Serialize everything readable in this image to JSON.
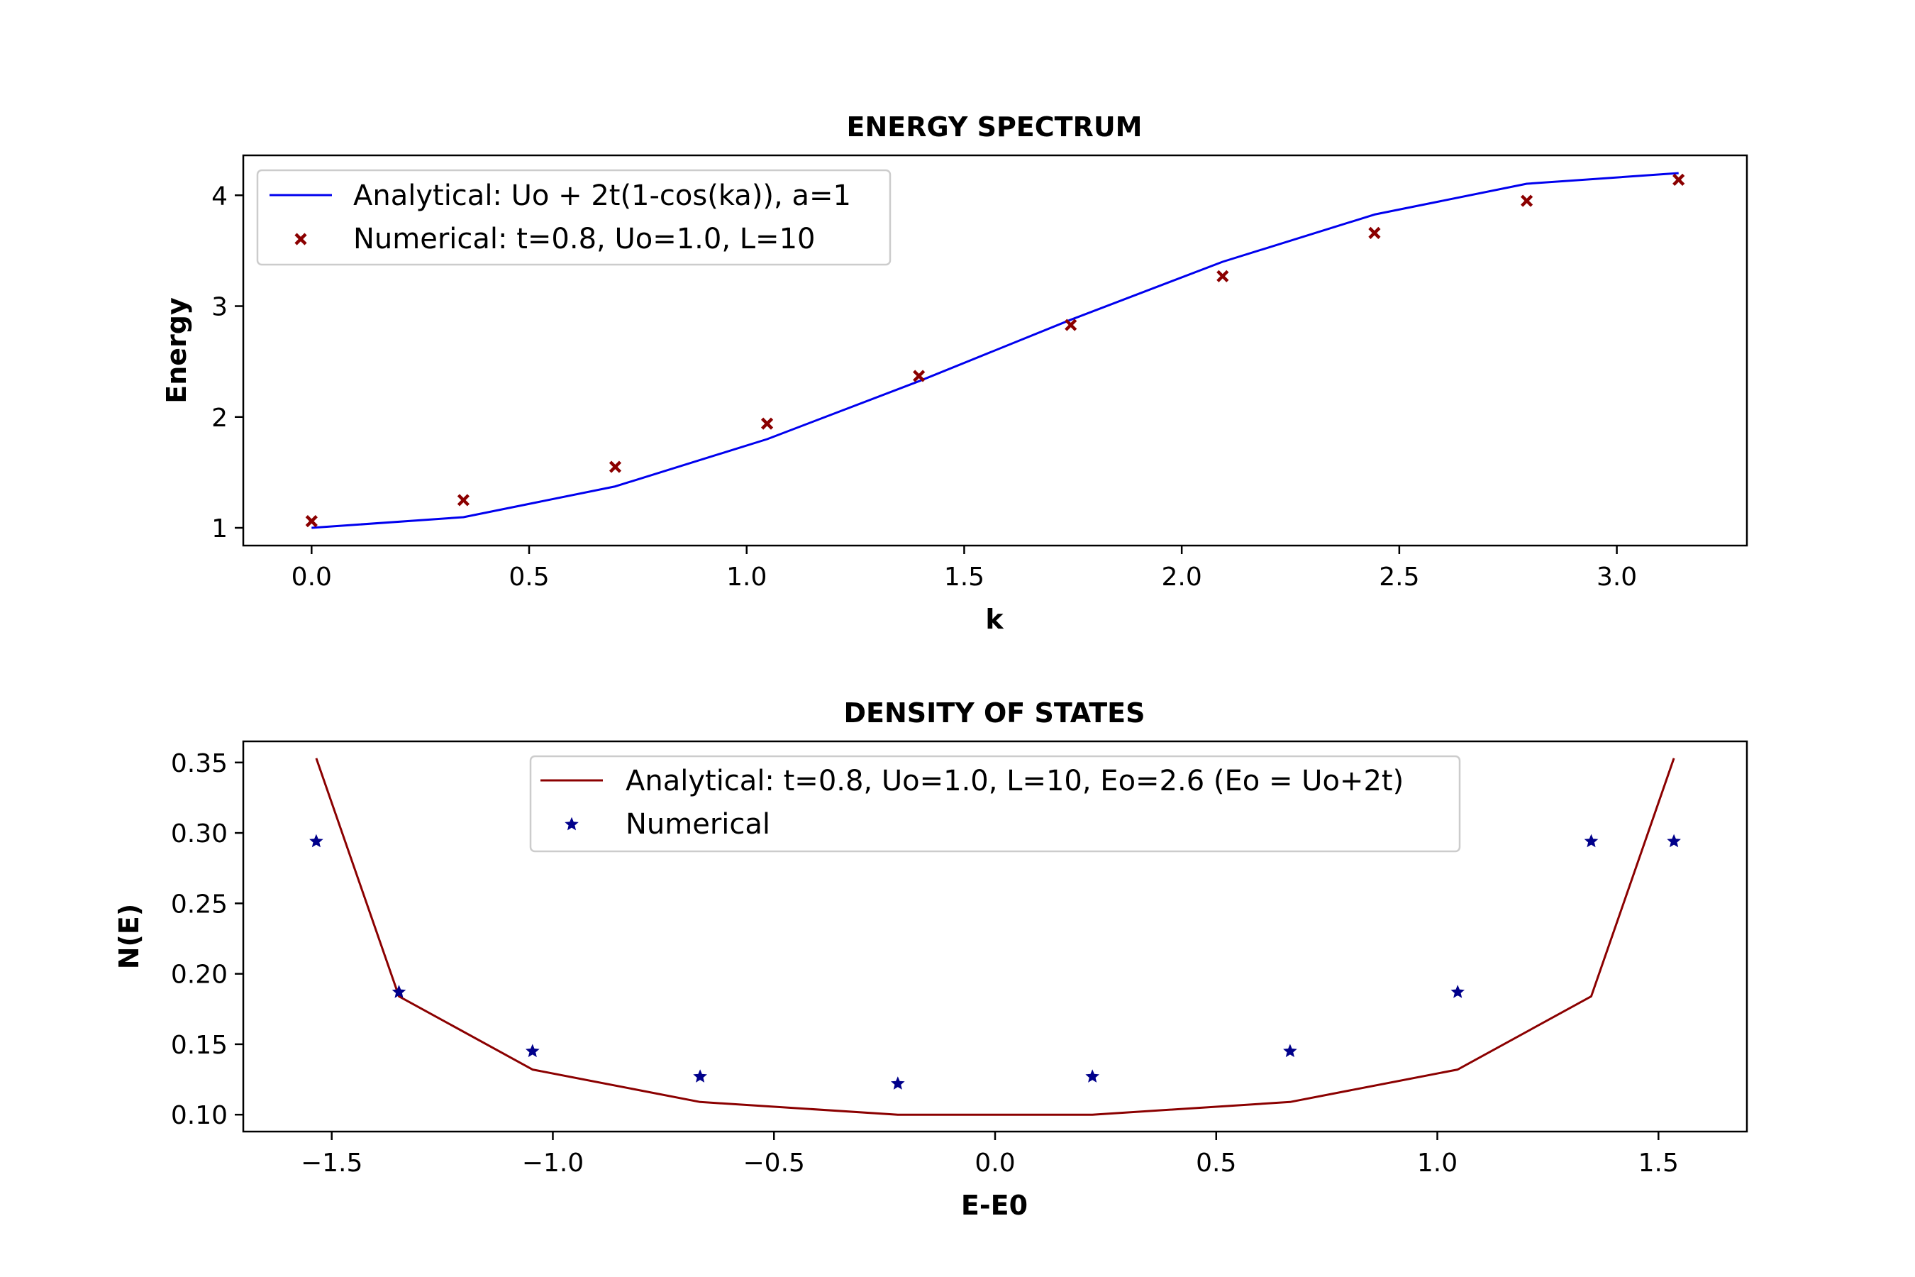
{
  "chart_data": [
    {
      "type": "line",
      "title": "ENERGY SPECTRUM",
      "xlabel": "k",
      "ylabel": "Energy",
      "xlim": [
        -0.157,
        3.299
      ],
      "ylim": [
        0.84,
        4.36
      ],
      "xticks": [
        "0.0",
        "0.5",
        "1.0",
        "1.5",
        "2.0",
        "2.5",
        "3.0"
      ],
      "yticks": [
        "1",
        "2",
        "3",
        "4"
      ],
      "legend_position": "upper-left",
      "colors": {
        "line": "#0000ee",
        "markers": "#8b0000"
      },
      "series": [
        {
          "name": "Analytical: Uo + 2t(1-cos(ka)), a=1",
          "kind": "line",
          "x": [
            0.0,
            0.349,
            0.698,
            1.047,
            1.396,
            1.745,
            2.094,
            2.443,
            2.793,
            3.142
          ],
          "y": [
            1.0,
            1.096,
            1.374,
            1.8,
            2.323,
            2.877,
            3.4,
            3.826,
            4.104,
            4.2
          ]
        },
        {
          "name": "Numerical: t=0.8, Uo=1.0, L=10",
          "kind": "scatter",
          "marker": "x",
          "x": [
            0.0,
            0.349,
            0.698,
            1.047,
            1.396,
            1.745,
            2.094,
            2.443,
            2.793,
            3.142
          ],
          "y": [
            1.06,
            1.25,
            1.55,
            1.94,
            2.37,
            2.83,
            3.27,
            3.66,
            3.95,
            4.14
          ]
        }
      ]
    },
    {
      "type": "line",
      "title": "DENSITY OF STATES",
      "xlabel": "E-E0",
      "ylabel": "N(E)",
      "xlim": [
        -1.7,
        1.7
      ],
      "ylim": [
        0.088,
        0.365
      ],
      "xticks": [
        "−1.5",
        "−1.0",
        "−0.5",
        "0.0",
        "0.5",
        "1.0",
        "1.5"
      ],
      "yticks": [
        "0.10",
        "0.15",
        "0.20",
        "0.25",
        "0.30",
        "0.35"
      ],
      "legend_position": "upper-center",
      "colors": {
        "line": "#8b0000",
        "markers": "#00008b"
      },
      "series": [
        {
          "name": "Analytical: t=0.8, Uo=1.0, L=10, Eo=2.6 (Eo = Uo+2t)",
          "kind": "line",
          "x": [
            -1.535,
            -1.348,
            -1.046,
            -0.667,
            -0.22,
            0.22,
            0.667,
            1.046,
            1.348,
            1.535
          ],
          "y": [
            0.353,
            0.184,
            0.132,
            0.109,
            0.1,
            0.1,
            0.109,
            0.132,
            0.184,
            0.353
          ]
        },
        {
          "name": "Numerical",
          "kind": "scatter",
          "marker": "star",
          "x": [
            -1.535,
            -1.348,
            -1.046,
            -0.667,
            -0.22,
            0.22,
            0.667,
            1.046,
            1.348,
            1.535
          ],
          "y": [
            0.294,
            0.187,
            0.145,
            0.127,
            0.122,
            0.127,
            0.145,
            0.187,
            0.294,
            0.294
          ]
        }
      ]
    }
  ]
}
